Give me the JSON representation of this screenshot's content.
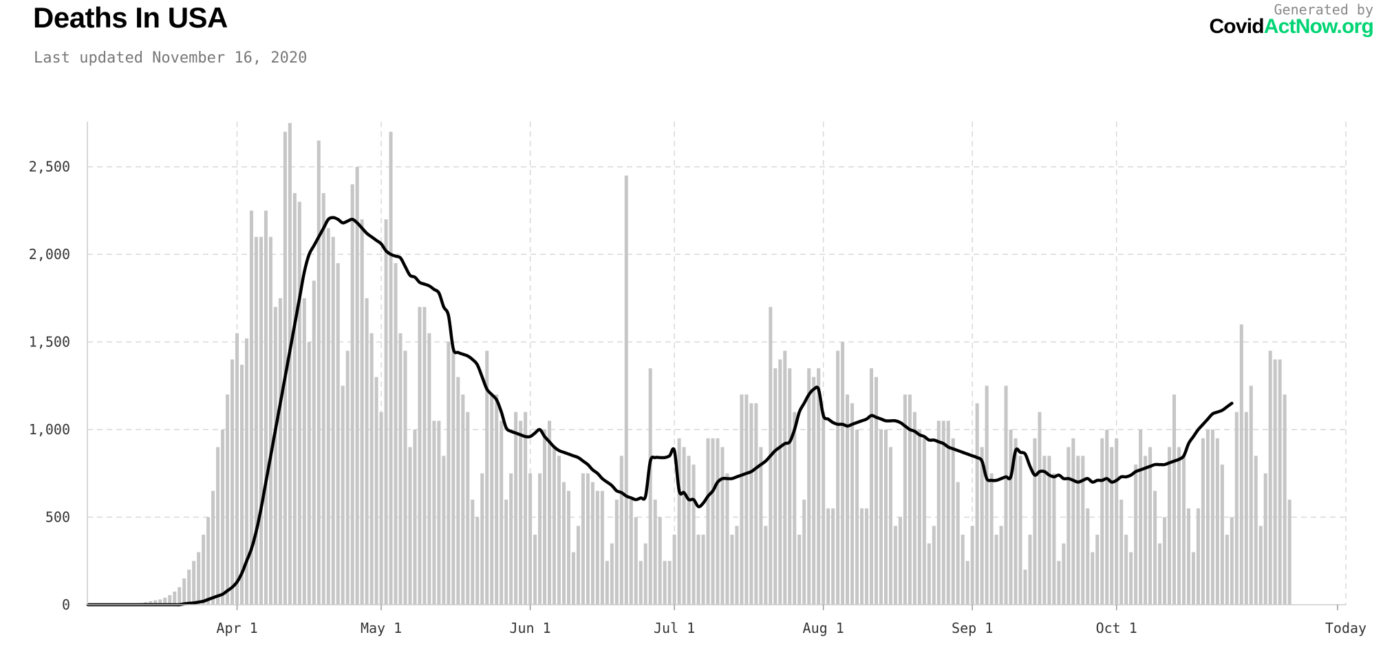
{
  "header": {
    "title": "Deaths In USA",
    "updated": "Last updated November 16, 2020",
    "generated_by": "Generated by",
    "brand_part1": "Covid",
    "brand_part2": "ActNow.org"
  },
  "colors": {
    "bar": "#c6c6c6",
    "line": "#000000",
    "grid": "#d8d8d8",
    "brand_green": "#00d474"
  },
  "chart_data": {
    "type": "bar",
    "title": "Deaths In USA",
    "xlabel": "",
    "ylabel": "",
    "ylim": [
      0,
      2750
    ],
    "y_ticks": [
      0,
      500,
      1000,
      1500,
      2000,
      2500
    ],
    "y_tick_labels": [
      "0",
      "500",
      "1,000",
      "1,500",
      "2,000",
      "2,500"
    ],
    "x_tick_labels": [
      "Apr 1",
      "May 1",
      "Jun 1",
      "Jul 1",
      "Aug 1",
      "Sep 1",
      "Oct 1",
      "Today"
    ],
    "x_tick_dates": [
      "2020-04-01",
      "2020-05-01",
      "2020-06-01",
      "2020-07-01",
      "2020-08-01",
      "2020-09-01",
      "2020-10-01",
      "2020-11-16"
    ],
    "grid": true,
    "legend": "none",
    "series": [
      {
        "style": "bar",
        "start_date": "2020-03-01",
        "values": [
          0,
          0,
          0,
          0,
          1,
          1,
          2,
          3,
          4,
          5,
          8,
          10,
          15,
          20,
          25,
          30,
          40,
          55,
          75,
          100,
          150,
          200,
          250,
          300,
          400,
          500,
          650,
          900,
          1000,
          1200,
          1400,
          1550,
          1370,
          1520,
          2250,
          2100,
          2100,
          2250,
          2100,
          1700,
          1750,
          2700,
          2750,
          2350,
          2300,
          1750,
          1500,
          1850,
          2650,
          2350,
          2150,
          2100,
          1950,
          1250,
          1450,
          2400,
          2500,
          2200,
          1750,
          1550,
          1300,
          1100,
          2200,
          2700,
          1950,
          1550,
          1450,
          900,
          1000,
          1700,
          1700,
          1550,
          1050,
          1050,
          850,
          1500,
          1450,
          1300,
          1200,
          1100,
          600,
          500,
          750,
          1450,
          1200,
          1200,
          1050,
          600,
          750,
          1100,
          1050,
          1100,
          750,
          400,
          750,
          1000,
          1050,
          900,
          850,
          700,
          650,
          300,
          450,
          750,
          750,
          700,
          650,
          650,
          250,
          350,
          600,
          850,
          2450,
          600,
          500,
          250,
          350,
          1350,
          600,
          500,
          250,
          250,
          400,
          950,
          900,
          850,
          800,
          400,
          400,
          950,
          950,
          950,
          900,
          750,
          400,
          450,
          1200,
          1200,
          1150,
          1150,
          900,
          450,
          1700,
          1350,
          1400,
          1450,
          1350,
          1100,
          400,
          600,
          1350,
          1300,
          1350,
          1100,
          550,
          550,
          1450,
          1500,
          1200,
          1150,
          1000,
          550,
          550,
          1350,
          1300,
          1000,
          1000,
          900,
          450,
          500,
          1200,
          1200,
          1100,
          1000,
          950,
          350,
          450,
          1050,
          1050,
          1050,
          950,
          700,
          400,
          250,
          450,
          1150,
          900,
          1250,
          750,
          400,
          450,
          1250,
          1000,
          950,
          850,
          200,
          400,
          950,
          1100,
          850,
          850,
          750,
          250,
          350,
          900,
          950,
          850,
          850,
          550,
          300,
          400,
          950,
          1000,
          900,
          950,
          600,
          400,
          300,
          800,
          1000,
          850,
          900,
          650,
          350,
          500,
          900,
          1200,
          900,
          850,
          550,
          300,
          550,
          950,
          1000,
          1000,
          950,
          800,
          400,
          500,
          1100,
          1600,
          1100,
          1250,
          850,
          450,
          750,
          1450,
          1400,
          1400,
          1200,
          600
        ]
      },
      {
        "style": "line",
        "name": "",
        "start_date": "2020-03-01",
        "values": [
          0,
          0,
          0,
          0,
          0,
          0,
          0,
          0,
          0,
          0,
          0,
          0,
          0,
          0,
          0,
          0,
          0,
          0,
          0,
          0,
          5,
          8,
          10,
          15,
          20,
          30,
          40,
          50,
          60,
          80,
          100,
          130,
          180,
          250,
          320,
          420,
          550,
          700,
          850,
          1000,
          1150,
          1300,
          1450,
          1600,
          1750,
          1900,
          2000,
          2050,
          2100,
          2150,
          2200,
          2210,
          2200,
          2180,
          2190,
          2200,
          2180,
          2150,
          2120,
          2100,
          2080,
          2060,
          2020,
          2000,
          1990,
          1980,
          1930,
          1880,
          1870,
          1840,
          1830,
          1820,
          1800,
          1780,
          1700,
          1650,
          1460,
          1440,
          1430,
          1420,
          1400,
          1370,
          1300,
          1230,
          1200,
          1170,
          1100,
          1010,
          990,
          980,
          970,
          960,
          960,
          980,
          1000,
          960,
          930,
          900,
          880,
          870,
          860,
          850,
          840,
          820,
          800,
          770,
          750,
          720,
          700,
          680,
          650,
          640,
          620,
          610,
          600,
          610,
          620,
          820,
          840,
          840,
          840,
          850,
          880,
          650,
          640,
          600,
          600,
          560,
          580,
          620,
          650,
          700,
          720,
          720,
          720,
          730,
          740,
          750,
          760,
          780,
          800,
          820,
          850,
          880,
          900,
          920,
          930,
          1000,
          1100,
          1150,
          1200,
          1230,
          1230,
          1080,
          1060,
          1040,
          1030,
          1030,
          1020,
          1030,
          1040,
          1050,
          1060,
          1080,
          1070,
          1060,
          1050,
          1050,
          1050,
          1040,
          1020,
          1000,
          990,
          970,
          960,
          940,
          940,
          930,
          920,
          900,
          890,
          880,
          870,
          860,
          850,
          840,
          820,
          720,
          710,
          710,
          720,
          730,
          730,
          880,
          870,
          860,
          790,
          740,
          760,
          760,
          740,
          730,
          740,
          720,
          720,
          710,
          700,
          710,
          720,
          700,
          710,
          710,
          720,
          700,
          710,
          730,
          730,
          740,
          760,
          770,
          780,
          790,
          800,
          800,
          800,
          810,
          820,
          830,
          850,
          920,
          960,
          1000,
          1030,
          1060,
          1090,
          1100,
          1110,
          1130,
          1150
        ]
      }
    ]
  }
}
